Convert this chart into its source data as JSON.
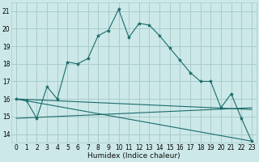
{
  "title": "",
  "xlabel": "Humidex (Indice chaleur)",
  "bg_color": "#cce8e8",
  "grid_color": "#aacccc",
  "line_color": "#1a6b6b",
  "xlim": [
    -0.5,
    23.5
  ],
  "ylim": [
    13.5,
    21.5
  ],
  "yticks": [
    14,
    15,
    16,
    17,
    18,
    19,
    20,
    21
  ],
  "xticks": [
    0,
    1,
    2,
    3,
    4,
    5,
    6,
    7,
    8,
    9,
    10,
    11,
    12,
    13,
    14,
    15,
    16,
    17,
    18,
    19,
    20,
    21,
    22,
    23
  ],
  "main_x": [
    0,
    1,
    2,
    3,
    4,
    5,
    6,
    7,
    8,
    9,
    10,
    11,
    12,
    13,
    14,
    15,
    16,
    17,
    18,
    19,
    20,
    21,
    22,
    23
  ],
  "main_y": [
    16.0,
    15.9,
    14.9,
    16.7,
    16.0,
    18.1,
    18.0,
    18.3,
    19.6,
    19.9,
    21.1,
    19.5,
    20.3,
    20.2,
    19.6,
    18.9,
    18.2,
    17.5,
    17.0,
    17.0,
    15.5,
    16.3,
    14.9,
    13.6
  ],
  "line1": {
    "x": [
      0,
      23
    ],
    "y": [
      16.0,
      13.6
    ]
  },
  "line2": {
    "x": [
      0,
      23
    ],
    "y": [
      14.9,
      15.5
    ]
  },
  "line3": {
    "x": [
      0,
      23
    ],
    "y": [
      16.0,
      15.4
    ]
  }
}
